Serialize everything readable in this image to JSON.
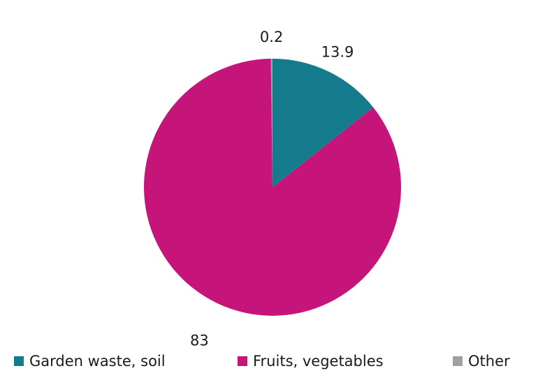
{
  "chart_data": {
    "type": "pie",
    "categories": [
      "Garden waste, soil",
      "Fruits, vegetables",
      "Other"
    ],
    "values": [
      13.9,
      83,
      0.2
    ],
    "colors": [
      "#137b8c",
      "#c6157a",
      "#a0a0a0"
    ],
    "legend": "bottom"
  }
}
